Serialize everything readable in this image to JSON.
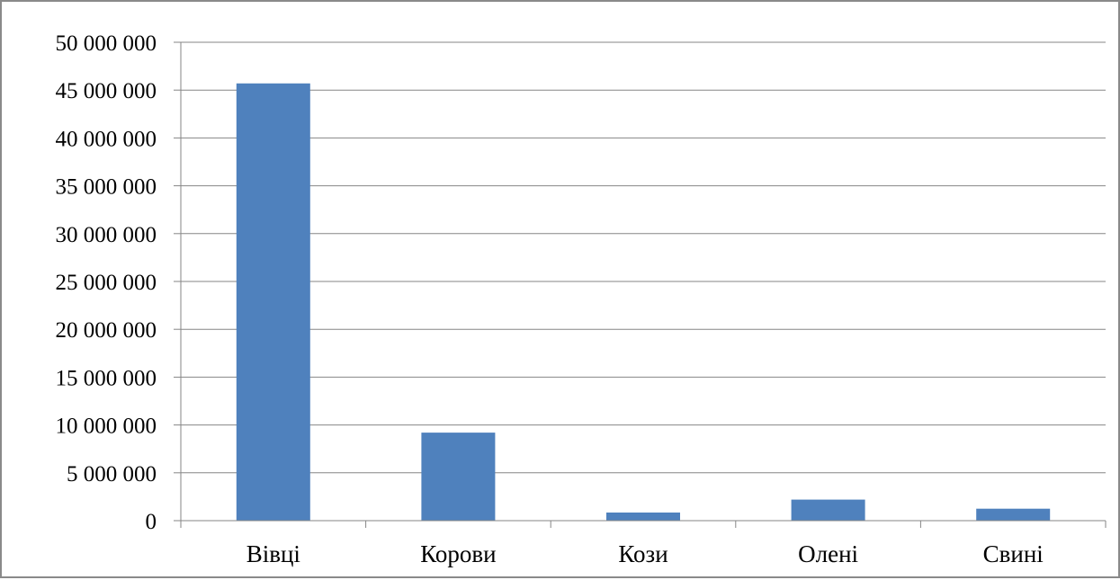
{
  "chart_data": {
    "type": "bar",
    "title": "",
    "xlabel": "",
    "ylabel": "",
    "categories": [
      "Вівці",
      "Корови",
      "Кози",
      "Олені",
      "Свині"
    ],
    "values": [
      45700000,
      9200000,
      850000,
      2200000,
      1250000
    ],
    "ylim": [
      0,
      50000000
    ],
    "yticks": [
      0,
      5000000,
      10000000,
      15000000,
      20000000,
      25000000,
      30000000,
      35000000,
      40000000,
      45000000,
      50000000
    ],
    "ytick_labels": [
      "0",
      "5 000 000",
      "10 000 000",
      "15 000 000",
      "20 000 000",
      "25 000 000",
      "30 000 000",
      "35 000 000",
      "40 000 000",
      "45 000 000",
      "50 000 000"
    ],
    "grid": true,
    "legend": "none",
    "bar_color": "#4f81bd",
    "grid_color": "#868686",
    "axis_color": "#868686"
  }
}
